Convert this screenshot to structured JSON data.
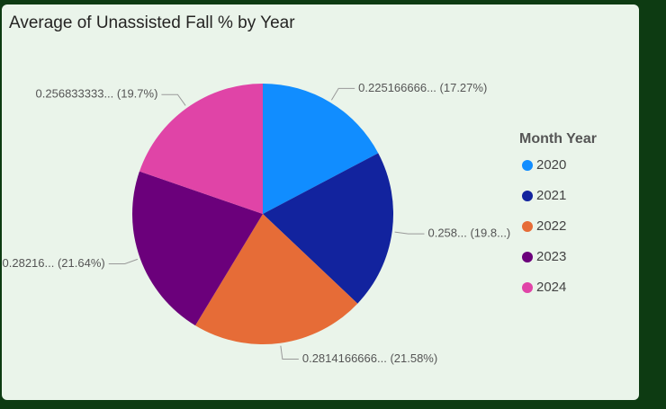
{
  "chart_data": {
    "type": "pie",
    "title": "Average of Unassisted Fall % by Year",
    "legend_title": "Month Year",
    "categories": [
      "2020",
      "2021",
      "2022",
      "2023",
      "2024"
    ],
    "values": [
      0.225166666,
      0.258,
      0.2814166666,
      0.28216,
      0.256833333
    ],
    "value_labels": [
      "0.225166666... (17.27%)",
      "0.258... (19.8...)",
      "0.2814166666... (21.58%)",
      "0.28216... (21.64%)",
      "0.256833333... (19.7%)"
    ],
    "colors": [
      "#118dff",
      "#12239e",
      "#e66c37",
      "#6b007b",
      "#e044a7"
    ],
    "legend_position": "right"
  }
}
